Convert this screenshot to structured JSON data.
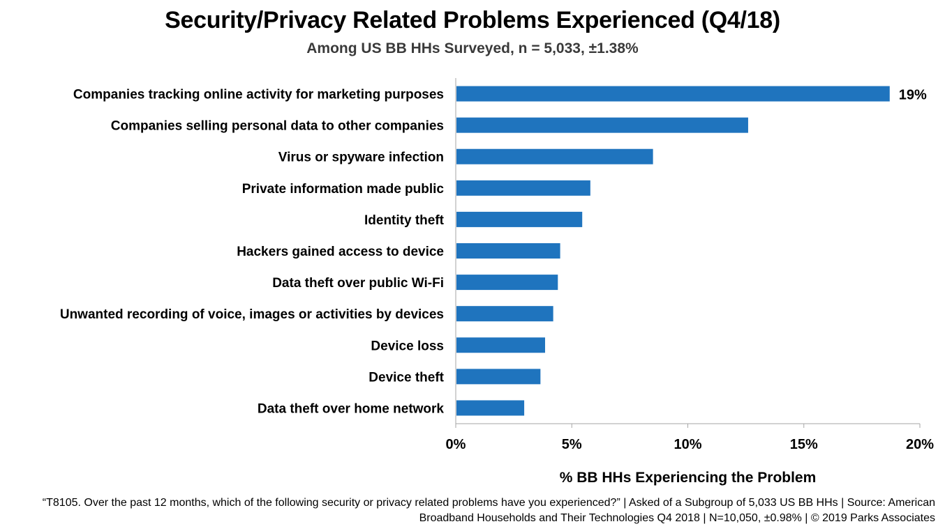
{
  "chart_data": {
    "type": "bar",
    "orientation": "horizontal",
    "title": "Security/Privacy Related Problems Experienced (Q4/18)",
    "subtitle": "Among US BB HHs Surveyed, n = 5,033, ±1.38%",
    "xlabel": "% BB HHs Experiencing the Problem",
    "ylabel": "",
    "xlim": [
      0,
      20
    ],
    "x_ticks": [
      "0%",
      "5%",
      "10%",
      "15%",
      "20%"
    ],
    "x_tick_values": [
      0,
      5,
      10,
      15,
      20
    ],
    "categories": [
      "Companies tracking online activity for marketing purposes",
      "Companies selling personal data to other companies",
      "Virus or spyware infection",
      "Private information made public",
      "Identity theft",
      "Hackers gained access to device",
      "Data theft over public Wi-Fi",
      "Unwanted recording of voice, images or activities by devices",
      "Device loss",
      "Device theft",
      "Data theft over home network"
    ],
    "values": [
      18.7,
      12.6,
      8.5,
      5.8,
      5.45,
      4.5,
      4.4,
      4.2,
      3.85,
      3.65,
      2.95
    ],
    "data_labels": [
      "19%",
      "",
      "",
      "",
      "",
      "",
      "",
      "",
      "",
      "",
      ""
    ],
    "bar_color": "#1f74be",
    "grid": false,
    "legend": "none"
  },
  "footnote": "“T8105. Over the past 12 months, which of the following security or privacy related problems have you experienced?” | Asked of a Subgroup of 5,033 US BB HHs | Source: American Broadband Households and Their Technologies Q4 2018 | N=10,050, ±0.98% | © 2019 Parks Associates"
}
